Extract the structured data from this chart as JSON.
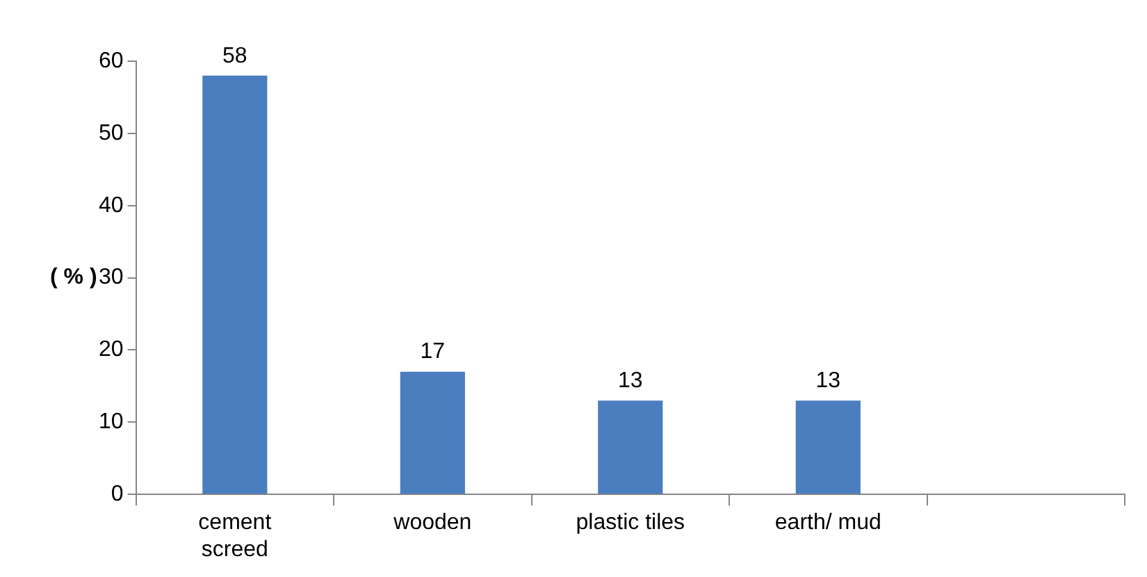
{
  "chart_data": {
    "type": "bar",
    "ylabel": "( % )",
    "categories": [
      "cement screed",
      "wooden",
      "plastic tiles",
      "earth/ mud",
      null
    ],
    "values": [
      58,
      17,
      13,
      13,
      null
    ],
    "color": "#4a7ebf",
    "ylim": [
      0,
      60
    ],
    "yticks": [
      0,
      10,
      20,
      30,
      40,
      50,
      60
    ],
    "grid": false,
    "legend": false,
    "data_labels": true
  }
}
